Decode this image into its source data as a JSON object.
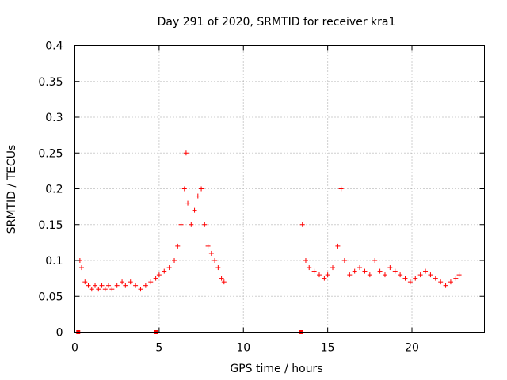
{
  "chart_data": {
    "type": "scatter",
    "title": "Day 291 of 2020, SRMTID for receiver kra1",
    "xlabel": "GPS time / hours",
    "ylabel": "SRMTID / TECUs",
    "xlim": [
      0,
      24.3
    ],
    "ylim": [
      0,
      0.4
    ],
    "x_ticks": [
      0,
      5,
      10,
      15,
      20
    ],
    "x_tick_labels": [
      "0",
      "5",
      "10",
      "15",
      "20"
    ],
    "y_ticks": [
      0,
      0.05,
      0.1,
      0.15,
      0.2,
      0.25,
      0.3,
      0.35,
      0.4
    ],
    "y_tick_labels": [
      "0",
      "0.05",
      "0.1",
      "0.15",
      "0.2",
      "0.25",
      "0.3",
      "0.35",
      "0.4"
    ],
    "grid": true,
    "marker": "+",
    "color": "#ff0000",
    "series": [
      {
        "name": "SRMTID",
        "segments": [
          {
            "start": 0.25,
            "end": 8.9
          },
          {
            "start": 13.4,
            "end": 22.8
          }
        ],
        "points": [
          [
            0.3,
            0.1
          ],
          [
            0.4,
            0.09
          ],
          [
            0.6,
            0.07
          ],
          [
            0.8,
            0.065
          ],
          [
            1.0,
            0.06
          ],
          [
            1.2,
            0.065
          ],
          [
            1.4,
            0.06
          ],
          [
            1.6,
            0.065
          ],
          [
            1.8,
            0.06
          ],
          [
            2.0,
            0.065
          ],
          [
            2.2,
            0.06
          ],
          [
            2.5,
            0.065
          ],
          [
            2.8,
            0.07
          ],
          [
            3.0,
            0.065
          ],
          [
            3.3,
            0.07
          ],
          [
            3.6,
            0.065
          ],
          [
            3.9,
            0.06
          ],
          [
            4.2,
            0.065
          ],
          [
            4.5,
            0.07
          ],
          [
            4.8,
            0.075
          ],
          [
            5.0,
            0.08
          ],
          [
            5.3,
            0.085
          ],
          [
            5.6,
            0.09
          ],
          [
            5.9,
            0.1
          ],
          [
            6.1,
            0.12
          ],
          [
            6.3,
            0.15
          ],
          [
            6.5,
            0.2
          ],
          [
            6.6,
            0.25
          ],
          [
            6.7,
            0.18
          ],
          [
            6.9,
            0.15
          ],
          [
            7.1,
            0.17
          ],
          [
            7.3,
            0.19
          ],
          [
            7.5,
            0.2
          ],
          [
            7.7,
            0.15
          ],
          [
            7.9,
            0.12
          ],
          [
            8.1,
            0.11
          ],
          [
            8.3,
            0.1
          ],
          [
            8.5,
            0.09
          ],
          [
            8.7,
            0.075
          ],
          [
            8.85,
            0.07
          ],
          [
            13.5,
            0.15
          ],
          [
            13.7,
            0.1
          ],
          [
            13.9,
            0.09
          ],
          [
            14.2,
            0.085
          ],
          [
            14.5,
            0.08
          ],
          [
            14.8,
            0.075
          ],
          [
            15.0,
            0.08
          ],
          [
            15.3,
            0.09
          ],
          [
            15.6,
            0.12
          ],
          [
            15.8,
            0.2
          ],
          [
            16.0,
            0.1
          ],
          [
            16.3,
            0.08
          ],
          [
            16.6,
            0.085
          ],
          [
            16.9,
            0.09
          ],
          [
            17.2,
            0.085
          ],
          [
            17.5,
            0.08
          ],
          [
            17.8,
            0.1
          ],
          [
            18.1,
            0.085
          ],
          [
            18.4,
            0.08
          ],
          [
            18.7,
            0.09
          ],
          [
            19.0,
            0.085
          ],
          [
            19.3,
            0.08
          ],
          [
            19.6,
            0.075
          ],
          [
            19.9,
            0.07
          ],
          [
            20.2,
            0.075
          ],
          [
            20.5,
            0.08
          ],
          [
            20.8,
            0.085
          ],
          [
            21.1,
            0.08
          ],
          [
            21.4,
            0.075
          ],
          [
            21.7,
            0.07
          ],
          [
            22.0,
            0.065
          ],
          [
            22.3,
            0.07
          ],
          [
            22.6,
            0.075
          ],
          [
            22.8,
            0.08
          ]
        ]
      }
    ],
    "gap_markers_x": [
      0.2,
      4.8,
      13.4
    ],
    "gap_markers_y": 0
  }
}
